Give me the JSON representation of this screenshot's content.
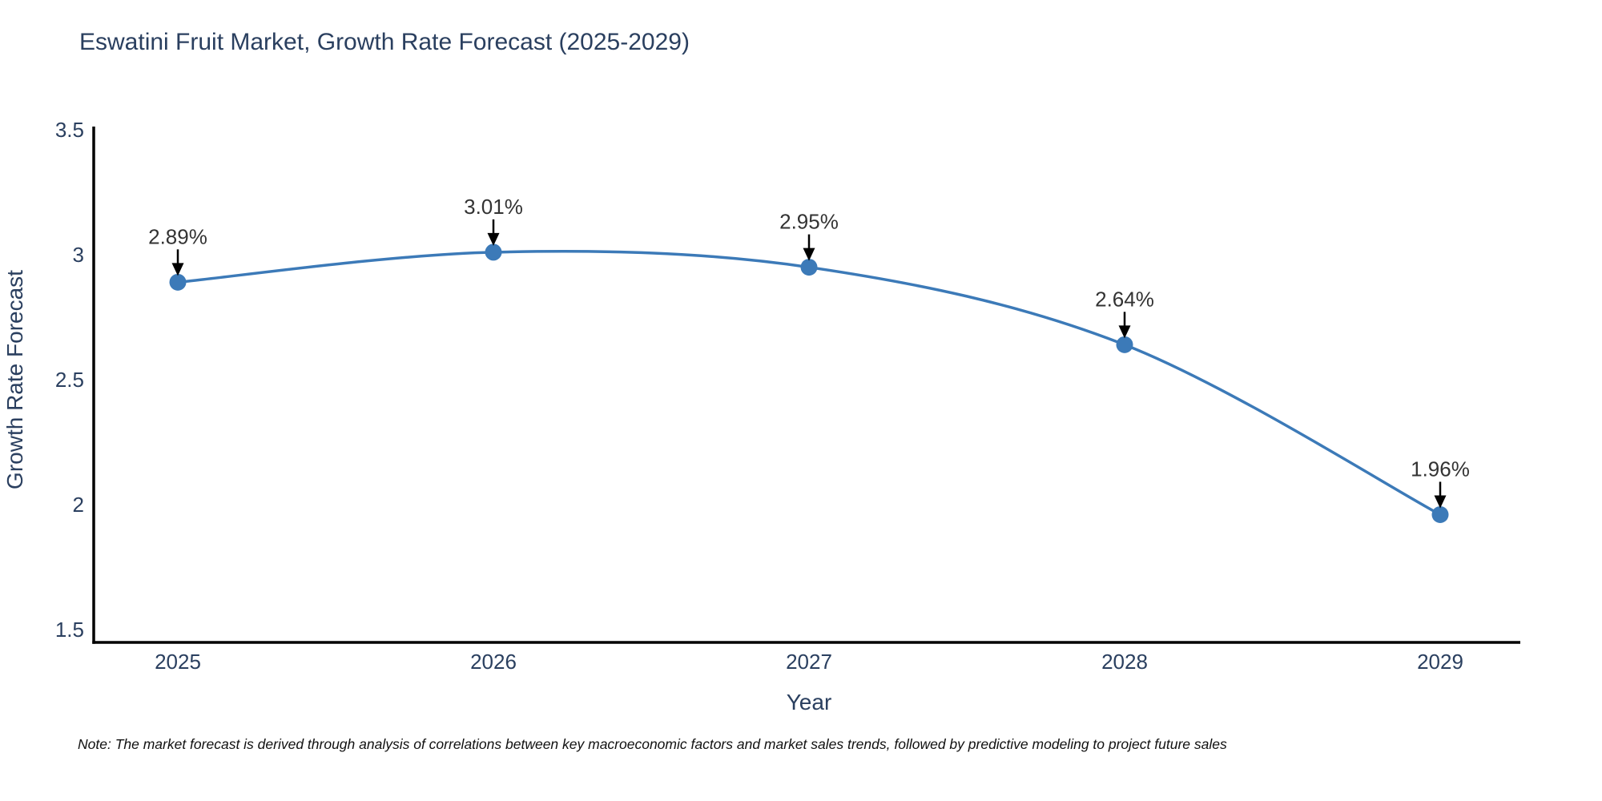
{
  "chart_data": {
    "type": "line",
    "title": "Eswatini Fruit Market, Growth Rate Forecast (2025-2029)",
    "xlabel": "Year",
    "ylabel": "Growth Rate Forecast",
    "categories": [
      "2025",
      "2026",
      "2027",
      "2028",
      "2029"
    ],
    "series": [
      {
        "name": "Growth Rate Forecast",
        "values": [
          2.89,
          3.01,
          2.95,
          2.64,
          1.96
        ],
        "point_labels": [
          "2.89%",
          "3.01%",
          "2.95%",
          "2.64%",
          "1.96%"
        ]
      }
    ],
    "y_ticks": [
      1.5,
      2,
      2.5,
      3,
      3.5
    ],
    "ylim": [
      1.45,
      3.52
    ],
    "grid": false,
    "legend_position": "none",
    "line_style": "spline",
    "colors": {
      "line": "#3c7ab8",
      "marker": "#3c7ab8",
      "axis": "#000000",
      "tick_label": "#2a3f5f",
      "axis_title": "#2a3f5f",
      "title": "#2a3f5f",
      "annotation_text": "#333333",
      "annotation_arrow": "#000000"
    }
  },
  "note": {
    "text": "Note: The market forecast is derived through analysis of correlations between key macroeconomic factors and market sales trends, followed by predictive modeling to project future sales"
  }
}
